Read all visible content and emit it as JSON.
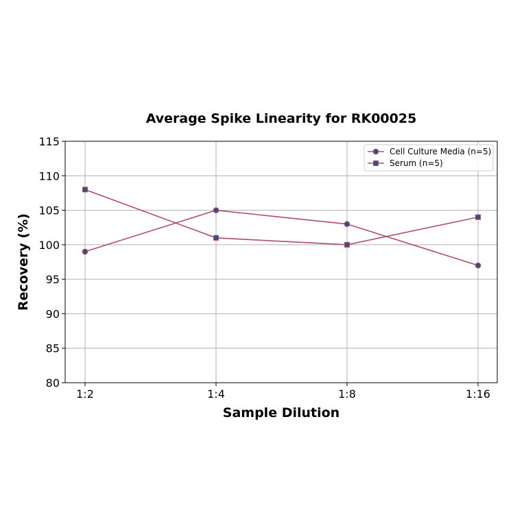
{
  "chart_data": {
    "type": "line",
    "title": "Average Spike Linearity for RK00025",
    "xlabel": "Sample Dilution",
    "ylabel": "Recovery (%)",
    "categories": [
      "1:2",
      "1:4",
      "1:8",
      "1:16"
    ],
    "ylim": [
      80,
      115
    ],
    "yticks": [
      80,
      85,
      90,
      95,
      100,
      105,
      110,
      115
    ],
    "grid": true,
    "legend_position": "top-right",
    "series": [
      {
        "name": "Cell Culture Media (n=5)",
        "marker": "circle",
        "values": [
          99,
          105,
          103,
          97
        ]
      },
      {
        "name": "Serum (n=5)",
        "marker": "square",
        "values": [
          108,
          101,
          100,
          104
        ]
      }
    ],
    "colors": {
      "line": "#b04a6e",
      "marker_fill": "#3c4f78",
      "grid": "#b0b0b0"
    }
  }
}
